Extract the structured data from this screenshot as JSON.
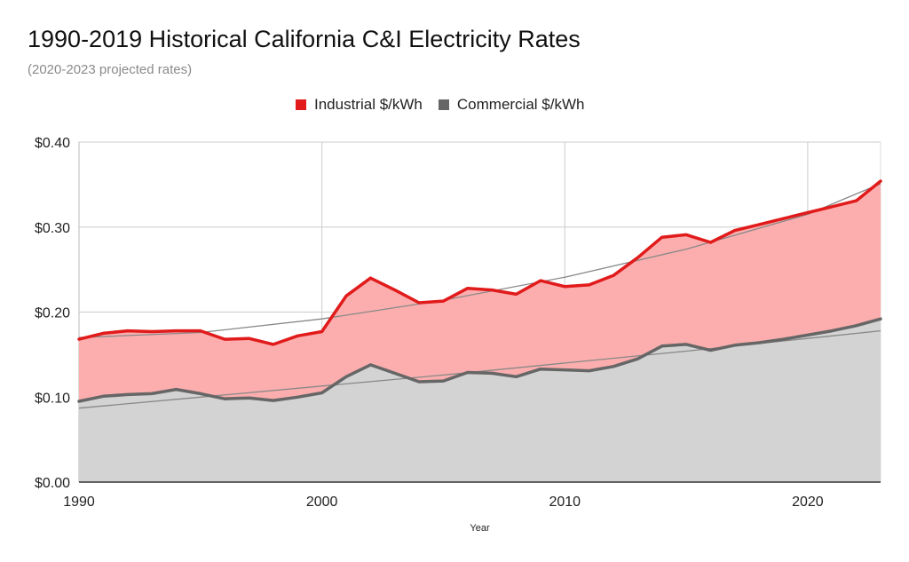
{
  "chart_data": {
    "type": "area",
    "title": "1990-2019 Historical California C&I Electricity Rates",
    "subtitle": "(2020-2023 projected rates)",
    "xlabel": "Year",
    "ylabel": "",
    "xlim": [
      1990,
      2023
    ],
    "ylim": [
      0,
      0.4
    ],
    "x_ticks": [
      1990,
      2000,
      2010,
      2020
    ],
    "x_tick_labels": [
      "1990",
      "2000",
      "2010",
      "2020"
    ],
    "y_ticks": [
      0,
      0.1,
      0.2,
      0.3,
      0.4
    ],
    "y_tick_labels": [
      "$0.00",
      "$0.10",
      "$0.20",
      "$0.30",
      "$0.40"
    ],
    "grid": true,
    "legend_position": "top",
    "x": [
      1990,
      1991,
      1992,
      1993,
      1994,
      1995,
      1996,
      1997,
      1998,
      1999,
      2000,
      2001,
      2002,
      2003,
      2004,
      2005,
      2006,
      2007,
      2008,
      2009,
      2010,
      2011,
      2012,
      2013,
      2014,
      2015,
      2016,
      2017,
      2018,
      2019,
      2020,
      2021,
      2022,
      2023
    ],
    "series": [
      {
        "name": "Industrial $/kWh",
        "color": "#e11b1b",
        "fill": "#fcaeae",
        "values": [
          0.168,
          0.175,
          0.178,
          0.177,
          0.178,
          0.178,
          0.168,
          0.169,
          0.162,
          0.172,
          0.177,
          0.219,
          0.24,
          0.226,
          0.211,
          0.213,
          0.228,
          0.226,
          0.221,
          0.237,
          0.23,
          0.232,
          0.243,
          0.264,
          0.288,
          0.291,
          0.282,
          0.296,
          0.303,
          0.31,
          0.317,
          0.324,
          0.331,
          0.354
        ]
      },
      {
        "name": "Commercial $/kWh",
        "color": "#666666",
        "fill": "#d3d3d3",
        "values": [
          0.095,
          0.101,
          0.103,
          0.104,
          0.109,
          0.104,
          0.098,
          0.099,
          0.096,
          0.1,
          0.105,
          0.124,
          0.138,
          0.128,
          0.118,
          0.119,
          0.129,
          0.128,
          0.124,
          0.133,
          0.132,
          0.131,
          0.136,
          0.145,
          0.16,
          0.162,
          0.155,
          0.161,
          0.164,
          0.168,
          0.173,
          0.178,
          0.184,
          0.192
        ]
      }
    ],
    "trendlines": [
      {
        "series": "Industrial $/kWh",
        "color": "#888888",
        "points": [
          [
            1990,
            0.17
          ],
          [
            1995,
            0.176
          ],
          [
            2000,
            0.192
          ],
          [
            2005,
            0.214
          ],
          [
            2010,
            0.241
          ],
          [
            2015,
            0.274
          ],
          [
            2020,
            0.315
          ],
          [
            2023,
            0.351
          ]
        ]
      },
      {
        "series": "Commercial $/kWh",
        "color": "#888888",
        "points": [
          [
            1990,
            0.087
          ],
          [
            1995,
            0.1
          ],
          [
            2000,
            0.113
          ],
          [
            2005,
            0.126
          ],
          [
            2010,
            0.14
          ],
          [
            2015,
            0.154
          ],
          [
            2020,
            0.169
          ],
          [
            2023,
            0.178
          ]
        ]
      }
    ]
  }
}
